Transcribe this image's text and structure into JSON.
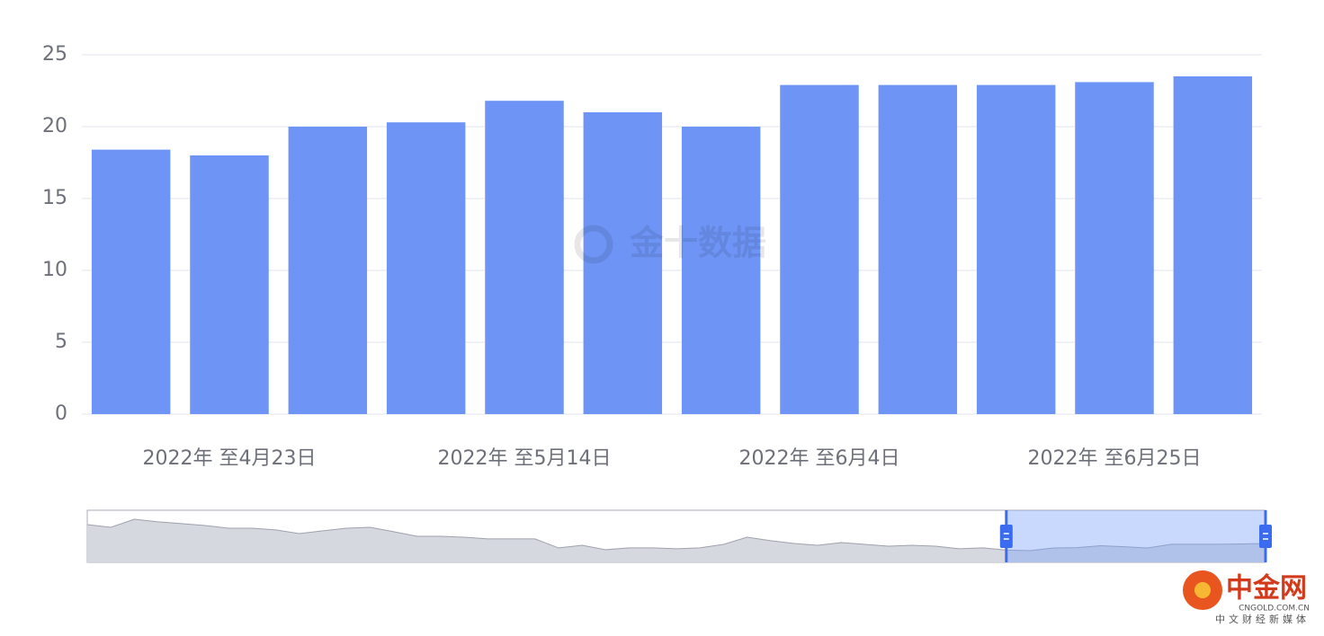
{
  "chart_data": {
    "type": "bar",
    "categories": [
      null,
      "2022年 至4月23日",
      null,
      null,
      "2022年 至5月14日",
      null,
      null,
      "2022年 至6月4日",
      null,
      null,
      "2022年 至6月25日",
      null
    ],
    "values": [
      18.4,
      18.0,
      20.0,
      20.3,
      21.8,
      21.0,
      20.0,
      22.9,
      22.9,
      22.9,
      23.1,
      23.5
    ],
    "color": "#6e94f5",
    "ylim": [
      0,
      25
    ],
    "yticks": [
      0,
      5,
      10,
      15,
      20,
      25
    ],
    "grid": true,
    "overview": {
      "values": [
        38.0,
        35.9,
        42.1,
        40.1,
        38.7,
        37.3,
        35.2,
        35.2,
        33.9,
        31.1,
        33.2,
        35.2,
        35.9,
        32.5,
        29.0,
        29.0,
        28.3,
        27.0,
        27.0,
        27.0,
        20.1,
        22.1,
        18.7,
        20.1,
        20.1,
        19.4,
        20.1,
        22.8,
        28.3,
        25.6,
        23.5,
        22.1,
        24.2,
        22.8,
        21.4,
        22.1,
        21.4,
        19.4,
        20.1,
        18.4,
        18.0,
        20.0,
        20.3,
        21.8,
        21.0,
        20.0,
        22.9,
        22.9,
        22.9,
        23.1,
        23.5
      ],
      "ylim": [
        9,
        49
      ]
    },
    "watermark": "金十数据",
    "branding": {
      "name": "中金网",
      "domain": "CNGOLD.COM.CN",
      "tagline": "中文财经新媒体"
    }
  }
}
